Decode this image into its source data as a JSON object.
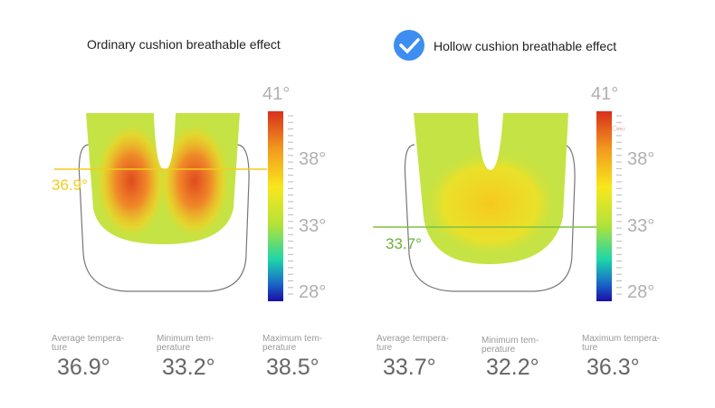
{
  "panels": [
    {
      "title": "Ordinary cushion breathable effect",
      "checked": false,
      "marker": "36.9°",
      "marker_color": "#f2cc1e",
      "scale": [
        "41°",
        "38°",
        "33°",
        "28°"
      ],
      "stats": [
        {
          "label": "Average tempera-ture",
          "value": "36.9°"
        },
        {
          "label": "Minimum tem-perature",
          "value": "33.2°"
        },
        {
          "label": "Maximum tem-perature",
          "value": "38.5°"
        }
      ]
    },
    {
      "title": "Hollow cushion breathable effect",
      "checked": true,
      "marker": "33.7°",
      "marker_color": "#7fc241",
      "scale_note": "One",
      "scale": [
        "41°",
        "38°",
        "33°",
        "28°"
      ],
      "stats": [
        {
          "label": "Average tempera-ture",
          "value": "33.7°"
        },
        {
          "label": "Minimum tem-perature",
          "value": "32.2°"
        },
        {
          "label": "Maximum tempera-ture",
          "value": "36.3°"
        }
      ]
    }
  ],
  "colors": {
    "check": "#3d8ef0",
    "outline": "#777777"
  }
}
